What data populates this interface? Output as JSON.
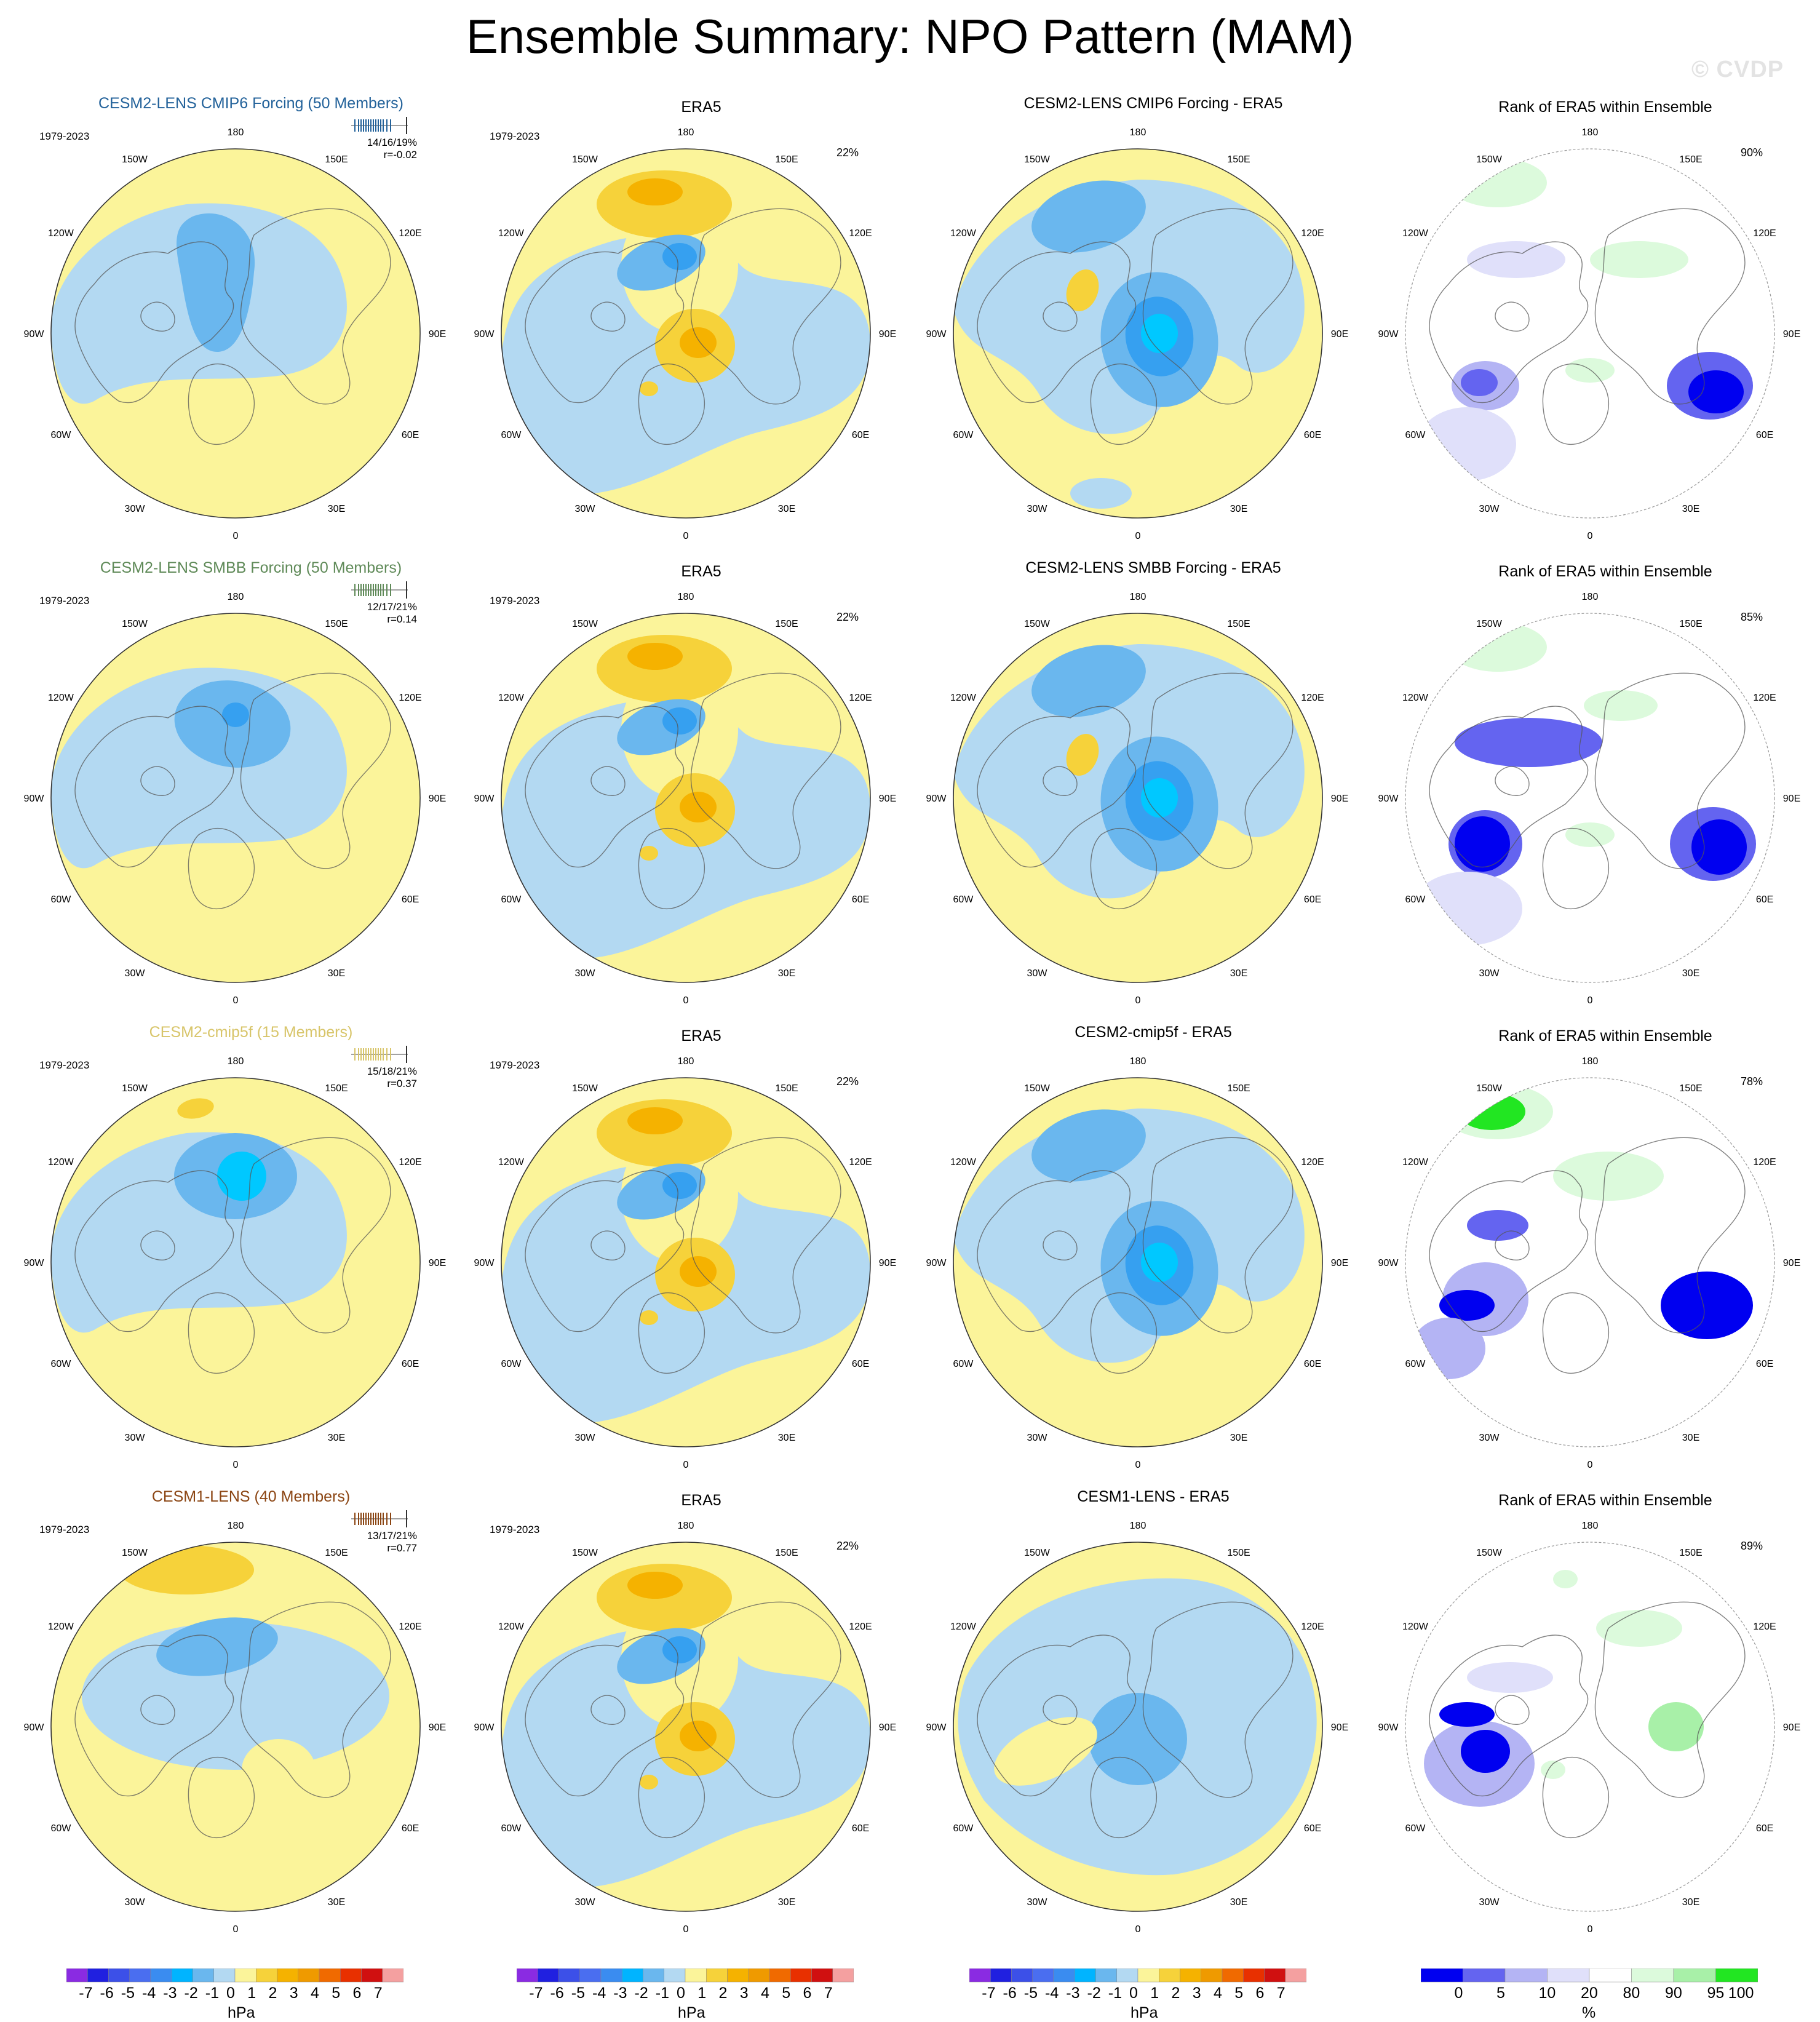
{
  "title": "Ensemble Summary: NPO Pattern (MAM)",
  "watermark": "© CVDP",
  "colors": {
    "neg3": "#00c8ff",
    "neg2": "#36a0f0",
    "neg1": "#6ab7ee",
    "neg0": "#b3d9f2",
    "pos0": "#fbf49a",
    "pos1": "#f6d23a",
    "pos2": "#f5b200",
    "pos3": "#ef9a00",
    "rank_0": "#0000f0",
    "rank_5": "#6464f0",
    "rank_10": "#b4b4f4",
    "rank_20": "#e0e0fa",
    "rank_80": "#ffffff",
    "rank_90": "#dcfadc",
    "rank_95": "#a8f0a8",
    "rank_100": "#22e622"
  },
  "lon_labels": [
    "180",
    "150E",
    "120E",
    "90E",
    "60E",
    "30E",
    "0",
    "30W",
    "60W",
    "90W",
    "120W",
    "150W"
  ],
  "rows": [
    {
      "model": {
        "title": "CESM2-LENS CMIP6 Forcing (50 Members)",
        "title_color": "#23629a",
        "period": "1979-2023",
        "stats_line1": "14/16/19%",
        "stats_line2": "r=-0.02"
      },
      "obs": {
        "title": "ERA5",
        "period": "1979-2023",
        "pct": "22%"
      },
      "diff": {
        "title": "CESM2-LENS CMIP6 Forcing - ERA5"
      },
      "rank": {
        "title": "Rank of ERA5 within Ensemble",
        "pct": "90%"
      }
    },
    {
      "model": {
        "title": "CESM2-LENS SMBB Forcing (50 Members)",
        "title_color": "#5f8a58",
        "period": "1979-2023",
        "stats_line1": "12/17/21%",
        "stats_line2": "r=0.14"
      },
      "obs": {
        "title": "ERA5",
        "period": "1979-2023",
        "pct": "22%"
      },
      "diff": {
        "title": "CESM2-LENS SMBB Forcing - ERA5"
      },
      "rank": {
        "title": "Rank of ERA5 within Ensemble",
        "pct": "85%"
      }
    },
    {
      "model": {
        "title": "CESM2-cmip5f (15 Members)",
        "title_color": "#d8c56a",
        "period": "1979-2023",
        "stats_line1": "15/18/21%",
        "stats_line2": "r=0.37"
      },
      "obs": {
        "title": "ERA5",
        "period": "1979-2023",
        "pct": "22%"
      },
      "diff": {
        "title": "CESM2-cmip5f - ERA5"
      },
      "rank": {
        "title": "Rank of ERA5 within Ensemble",
        "pct": "78%"
      }
    },
    {
      "model": {
        "title": "CESM1-LENS (40 Members)",
        "title_color": "#8b4513",
        "period": "1979-2023",
        "stats_line1": "13/17/21%",
        "stats_line2": "r=0.77"
      },
      "obs": {
        "title": "ERA5",
        "period": "1979-2023",
        "pct": "22%"
      },
      "diff": {
        "title": "CESM1-LENS - ERA5"
      },
      "rank": {
        "title": "Rank of ERA5 within Ensemble",
        "pct": "89%"
      }
    }
  ],
  "colorbar_hpa": {
    "ticks": [
      "-7",
      "-6",
      "-5",
      "-4",
      "-3",
      "-2",
      "-1",
      "0",
      "1",
      "2",
      "3",
      "4",
      "5",
      "6",
      "7"
    ],
    "colors": [
      "#8a2be2",
      "#2020e0",
      "#3c50e8",
      "#4a6ef0",
      "#3a8cf0",
      "#00b4ff",
      "#6ab7ee",
      "#b3d9f2",
      "#fbf49a",
      "#f6d23a",
      "#f5b200",
      "#ef9a00",
      "#f06a00",
      "#e83000",
      "#d01010",
      "#f4a0a0"
    ],
    "unit": "hPa"
  },
  "colorbar_rank": {
    "ticks": [
      "0",
      "5",
      "10",
      "20",
      "80",
      "90",
      "95",
      "100"
    ],
    "colors": [
      "#0000f0",
      "#6464f0",
      "#b4b4f4",
      "#e0e0fa",
      "#ffffff",
      "#dcfadc",
      "#a8f0a8",
      "#22e622"
    ],
    "unit": "%"
  }
}
